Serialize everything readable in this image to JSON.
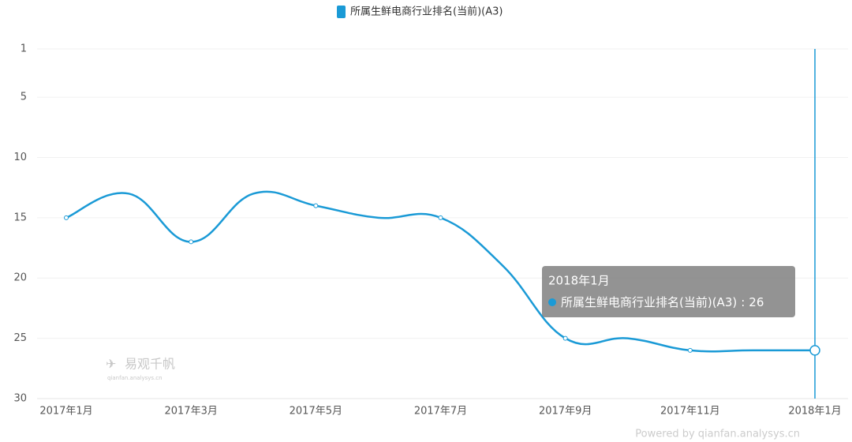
{
  "chart_data": {
    "type": "line",
    "categories": [
      "2017年1月",
      null,
      "2017年3月",
      null,
      "2017年5月",
      null,
      "2017年7月",
      null,
      "2017年9月",
      null,
      "2017年11月",
      null,
      "2018年1月"
    ],
    "series": [
      {
        "name": "所属生鲜电商行业排名(当前)(A3)",
        "color": "#1a9ad6",
        "values": [
          15,
          13,
          17,
          13,
          14,
          15,
          15,
          19,
          25,
          25,
          26,
          26,
          26
        ]
      }
    ],
    "ylim": [
      1,
      30
    ],
    "yticks": [
      1,
      5,
      10,
      15,
      20,
      25,
      30
    ],
    "y_inverted": true,
    "grid": true,
    "legend": "top",
    "tooltip": {
      "index": 12,
      "separator": ":"
    },
    "watermark": "易观千帆",
    "watermark_url": "qianfan.analysys.cn",
    "credit": "Powered by qianfan.analysys.cn"
  }
}
